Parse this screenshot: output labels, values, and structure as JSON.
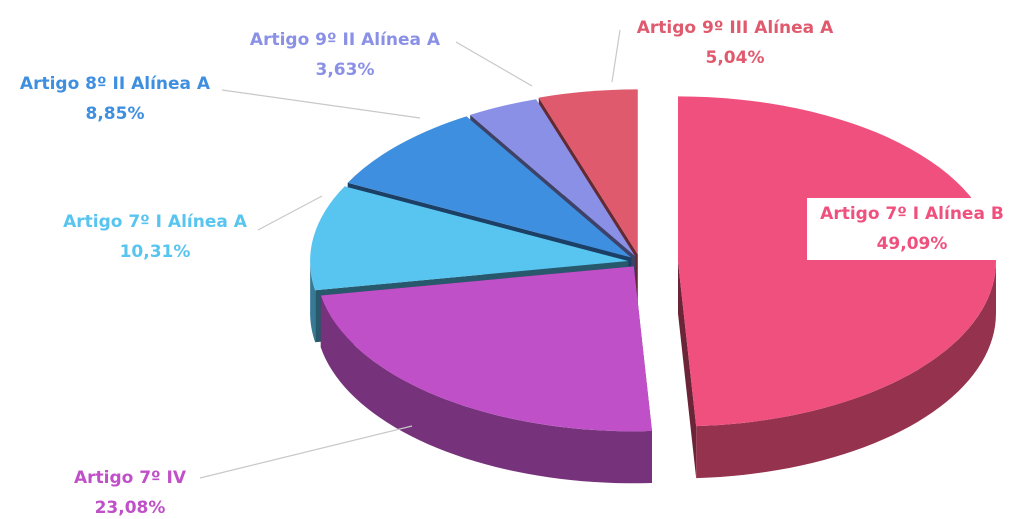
{
  "chart_data": {
    "type": "pie3d",
    "categories": [
      "Artigo 7º I Alínea B",
      "Artigo 7º IV",
      "Artigo 7º I Alínea A",
      "Artigo 8º II Alínea A",
      "Artigo 9º II Alínea A",
      "Artigo 9º III Alínea A"
    ],
    "values": [
      49.09,
      23.08,
      10.31,
      8.85,
      3.63,
      5.04
    ],
    "value_labels": [
      "49,09%",
      "23,08%",
      "10,31%",
      "8,85%",
      "3,63%",
      "5,04%"
    ],
    "colors": [
      "#f0507e",
      "#c050c8",
      "#58c4f0",
      "#3f8fe0",
      "#8a90e6",
      "#e05a6e"
    ]
  }
}
